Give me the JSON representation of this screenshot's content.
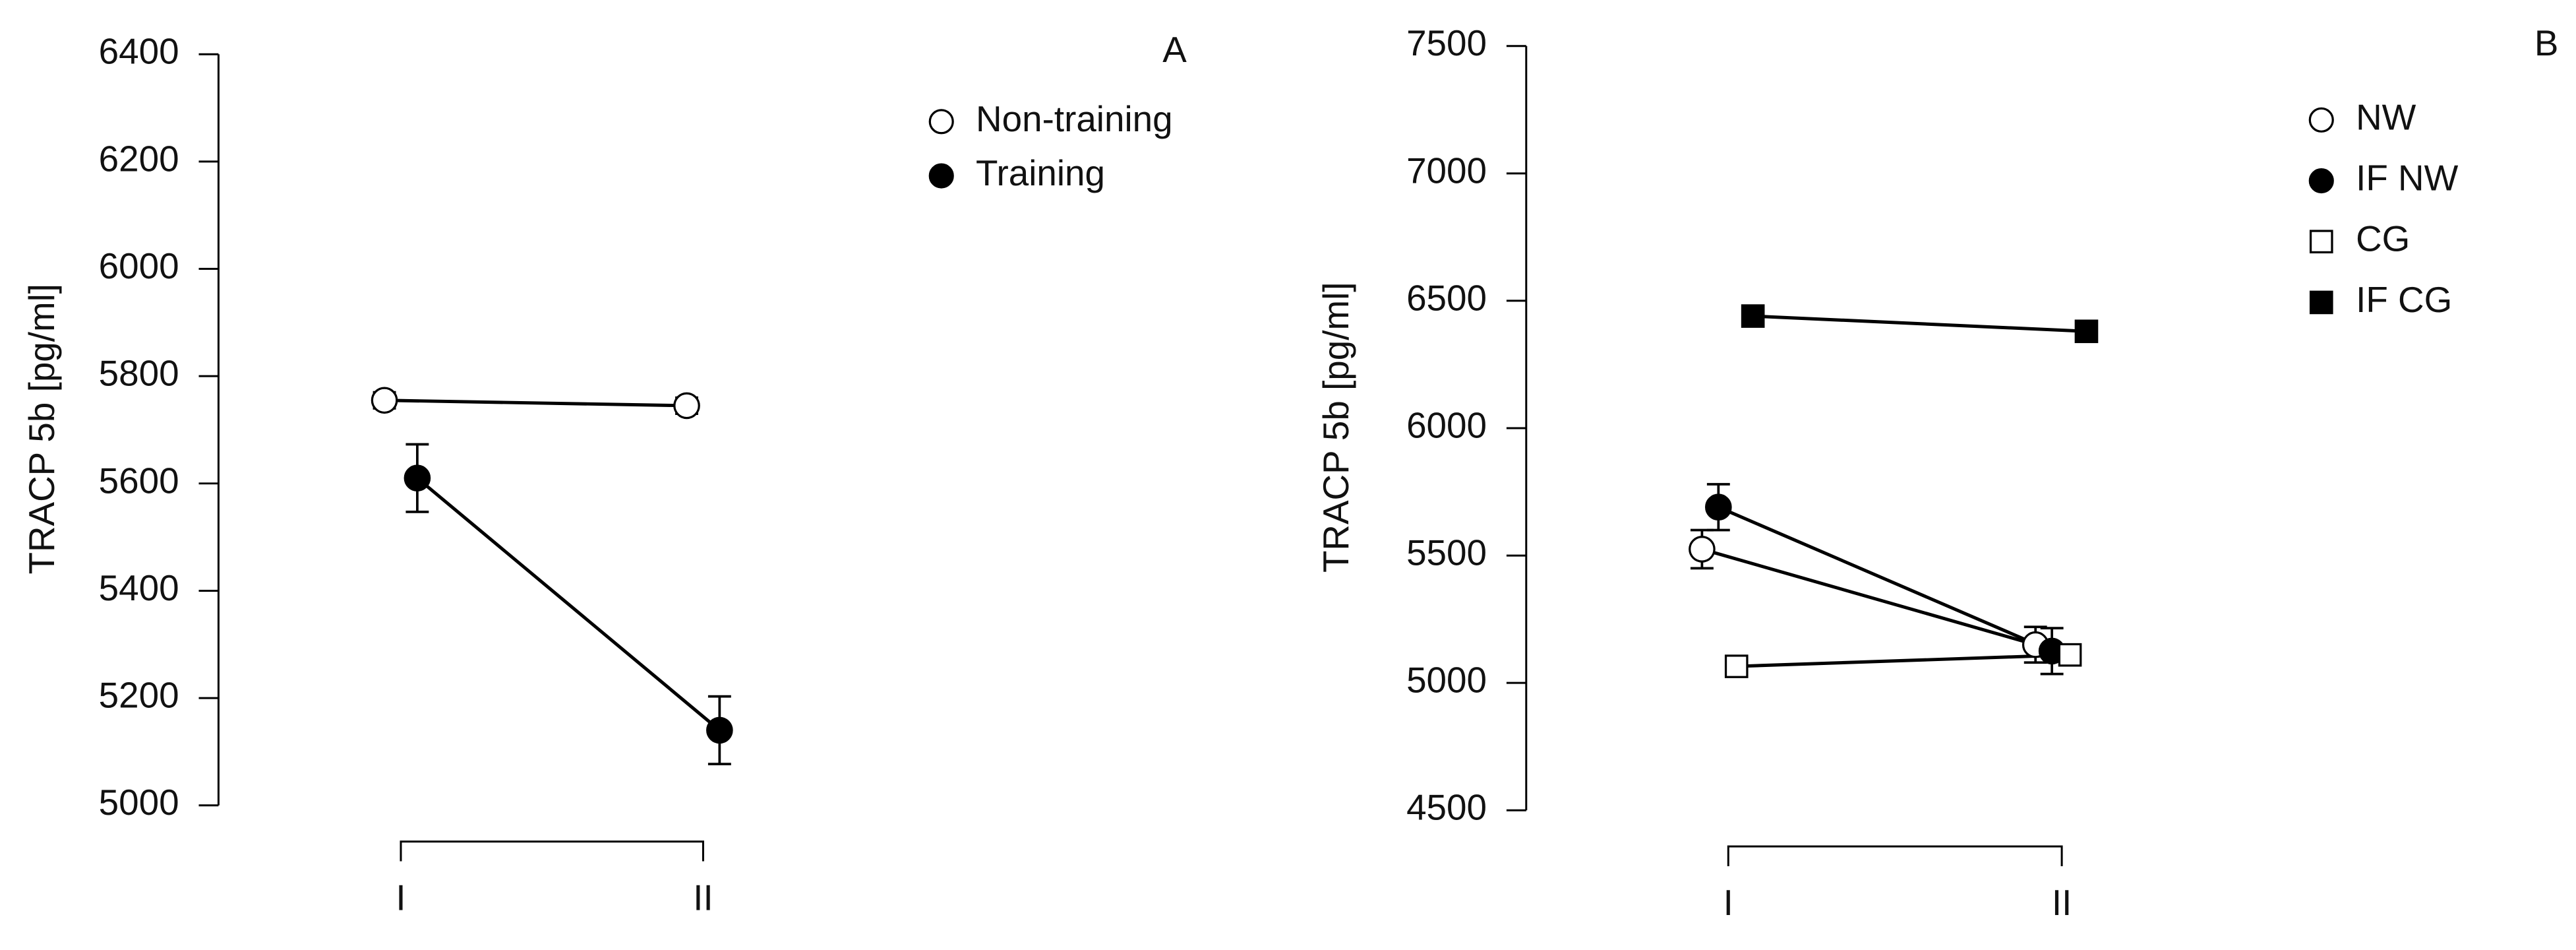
{
  "chart_data": [
    {
      "type": "line",
      "panel_label": "A",
      "y_label": "TRACP 5b [pg/ml]",
      "categories": [
        "I",
        "II"
      ],
      "ylim": [
        5000,
        6400
      ],
      "yticks": [
        5000,
        5200,
        5400,
        5600,
        5800,
        6000,
        6200,
        6400
      ],
      "series": [
        {
          "name": "Non-training",
          "marker": "circle",
          "color": "#ffffff",
          "values": [
            5755,
            5745
          ],
          "errors": [
            15,
            15
          ]
        },
        {
          "name": "Training",
          "marker": "circle",
          "color": "#000000",
          "values": [
            5610,
            5140
          ],
          "errors": [
            63,
            63
          ]
        }
      ]
    },
    {
      "type": "line",
      "panel_label": "B",
      "y_label": "TRACP 5b [pg/ml]",
      "categories": [
        "I",
        "II"
      ],
      "ylim": [
        4500,
        7500
      ],
      "yticks": [
        4500,
        5000,
        5500,
        6000,
        6500,
        7000,
        7500
      ],
      "series": [
        {
          "name": "NW",
          "marker": "circle",
          "color": "#ffffff",
          "values": [
            5525,
            5150
          ],
          "errors": [
            75,
            70
          ]
        },
        {
          "name": "IF NW",
          "marker": "circle",
          "color": "#000000",
          "values": [
            5690,
            5125
          ],
          "errors": [
            90,
            90
          ]
        },
        {
          "name": "CG",
          "marker": "square",
          "color": "#ffffff",
          "values": [
            5065,
            5110
          ]
        },
        {
          "name": "IF CG",
          "marker": "square",
          "color": "#000000",
          "values": [
            6440,
            6380
          ]
        }
      ]
    }
  ]
}
